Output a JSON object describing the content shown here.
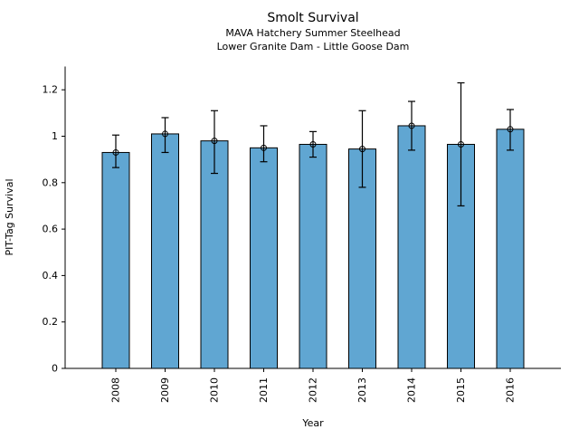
{
  "chart_data": {
    "type": "bar",
    "title": "Smolt Survival",
    "subtitle1": "MAVA Hatchery Summer Steelhead",
    "subtitle2": "Lower Granite Dam - Little Goose Dam",
    "xlabel": "Year",
    "ylabel": "PIT-Tag Survival",
    "categories": [
      "2008",
      "2009",
      "2010",
      "2011",
      "2012",
      "2013",
      "2014",
      "2015",
      "2016"
    ],
    "values": [
      0.93,
      1.01,
      0.98,
      0.95,
      0.965,
      0.945,
      1.045,
      0.965,
      1.03
    ],
    "error_low": [
      0.865,
      0.93,
      0.84,
      0.89,
      0.91,
      0.78,
      0.94,
      0.7,
      0.94
    ],
    "error_high": [
      1.005,
      1.08,
      1.11,
      1.045,
      1.02,
      1.11,
      1.15,
      1.23,
      1.115
    ],
    "yticks": [
      0,
      0.2,
      0.4,
      0.6,
      0.8,
      1,
      1.2
    ],
    "ylim": [
      0,
      1.3
    ],
    "grid": false,
    "legend": false,
    "bar_color": "#60a6d2",
    "bar_edge_color": "#000000",
    "error_color": "#000000"
  }
}
